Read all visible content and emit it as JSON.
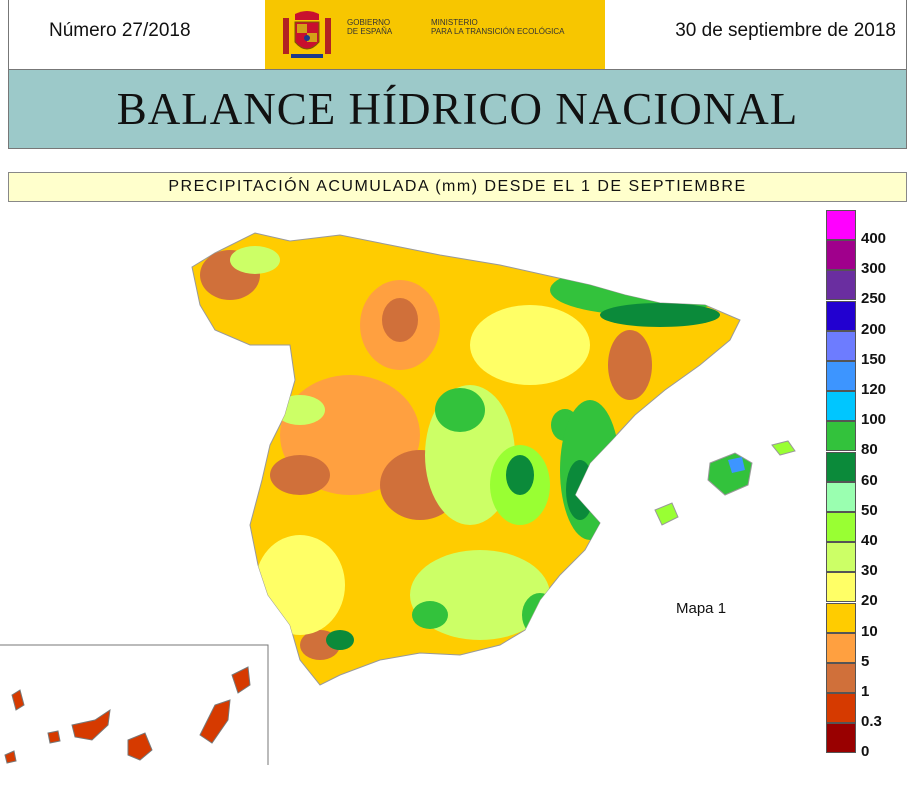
{
  "header": {
    "issue": "Número 27/2018",
    "date": "30 de septiembre de 2018",
    "gobierno_line1": "GOBIERNO",
    "gobierno_line2": "DE ESPAÑA",
    "ministerio_line1": "MINISTERIO",
    "ministerio_line2": "PARA LA TRANSICIÓN ECOLÓGICA"
  },
  "title": "BALANCE HÍDRICO NACIONAL",
  "subtitle": "PRECIPITACIÓN ACUMULADA (mm) DESDE EL 1 DE SEPTIEMBRE",
  "map": {
    "label": "Mapa 1"
  },
  "legend": {
    "items": [
      {
        "label": "400",
        "color": "#ff00ff"
      },
      {
        "label": "300",
        "color": "#a0008c"
      },
      {
        "label": "250",
        "color": "#6a2ea0"
      },
      {
        "label": "200",
        "color": "#2200d0"
      },
      {
        "label": "150",
        "color": "#6d7cff"
      },
      {
        "label": "120",
        "color": "#3d95ff"
      },
      {
        "label": "100",
        "color": "#00c6ff"
      },
      {
        "label": "80",
        "color": "#33c23c"
      },
      {
        "label": "60",
        "color": "#0b8a3a"
      },
      {
        "label": "50",
        "color": "#9affb0"
      },
      {
        "label": "40",
        "color": "#99ff33"
      },
      {
        "label": "30",
        "color": "#ccff66"
      },
      {
        "label": "20",
        "color": "#ffff66"
      },
      {
        "label": "10",
        "color": "#ffcc00"
      },
      {
        "label": "5",
        "color": "#ffa040"
      },
      {
        "label": "1",
        "color": "#d0703a"
      },
      {
        "label": "0.3",
        "color": "#d63a00"
      },
      {
        "label": "0",
        "color": "#990000"
      }
    ]
  }
}
